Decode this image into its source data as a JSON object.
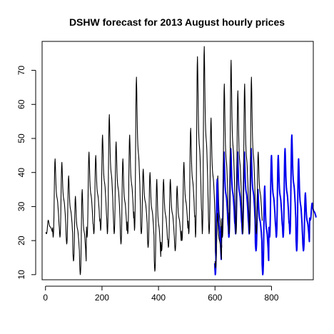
{
  "chart_data": {
    "type": "line",
    "title": "DSHW forecast for 2013 August hourly prices",
    "xlabel": "",
    "ylabel": "",
    "xlim": [
      -12,
      948
    ],
    "ylim": [
      8.5,
      78.5
    ],
    "x_ticks": [
      0,
      200,
      400,
      600,
      800
    ],
    "y_ticks": [
      10,
      20,
      30,
      40,
      50,
      60,
      70
    ],
    "grid": false,
    "legend": "none",
    "series": [
      {
        "color": "#000000",
        "x_start": 1,
        "x_step": 1,
        "daily_shape": [
          0.12,
          0.05,
          0.0,
          0.02,
          0.1,
          0.28,
          0.55,
          0.8,
          0.95,
          1.0,
          0.92,
          0.8,
          0.68,
          0.6,
          0.55,
          0.52,
          0.5,
          0.48,
          0.45,
          0.4,
          0.35,
          0.3,
          0.22,
          0.16
        ],
        "daily_ranges": [
          [
            22,
            26
          ],
          [
            21,
            44
          ],
          [
            21,
            43
          ],
          [
            19,
            39
          ],
          [
            14,
            33
          ],
          [
            10,
            35
          ],
          [
            21,
            46
          ],
          [
            22,
            45
          ],
          [
            23,
            51
          ],
          [
            22,
            57
          ],
          [
            22,
            49
          ],
          [
            19,
            44
          ],
          [
            22,
            51
          ],
          [
            23,
            68
          ],
          [
            22,
            41
          ],
          [
            18,
            40
          ],
          [
            11,
            38
          ],
          [
            17,
            38
          ],
          [
            18,
            38
          ],
          [
            17,
            36
          ],
          [
            20,
            43
          ],
          [
            22,
            53
          ],
          [
            21,
            74
          ],
          [
            22,
            77
          ],
          [
            22,
            56
          ],
          [
            14,
            39
          ]
        ]
      },
      {
        "color": "#0000ee",
        "x_start": 599,
        "x_step": 1,
        "daily_shape": [
          0.12,
          0.05,
          0.0,
          0.02,
          0.1,
          0.28,
          0.55,
          0.8,
          0.95,
          1.0,
          0.92,
          0.8,
          0.68,
          0.6,
          0.55,
          0.52,
          0.5,
          0.48,
          0.45,
          0.4,
          0.35,
          0.3,
          0.22,
          0.16
        ],
        "daily_ranges": [
          [
            10,
            38
          ],
          [
            21,
            46
          ],
          [
            21,
            47
          ],
          [
            22,
            46
          ],
          [
            22,
            46
          ],
          [
            22,
            47
          ],
          [
            17,
            35
          ],
          [
            10,
            36
          ],
          [
            21,
            45
          ],
          [
            21,
            45
          ],
          [
            21,
            47
          ],
          [
            22,
            51
          ],
          [
            17,
            44
          ],
          [
            17,
            34
          ],
          [
            26,
            31
          ]
        ]
      },
      {
        "color": "#000000",
        "x_start": 600,
        "x_step": 1,
        "daily_shape": [
          0.12,
          0.05,
          0.0,
          0.02,
          0.1,
          0.28,
          0.55,
          0.8,
          0.95,
          1.0,
          0.92,
          0.8,
          0.68,
          0.6,
          0.55,
          0.52,
          0.5,
          0.48,
          0.45,
          0.4,
          0.35,
          0.3,
          0.22,
          0.16
        ],
        "daily_ranges": [
          [
            12,
            28
          ],
          [
            21,
            66
          ],
          [
            22,
            73
          ],
          [
            22,
            64
          ],
          [
            22,
            66
          ],
          [
            22,
            68
          ],
          [
            22,
            46
          ]
        ]
      }
    ]
  }
}
